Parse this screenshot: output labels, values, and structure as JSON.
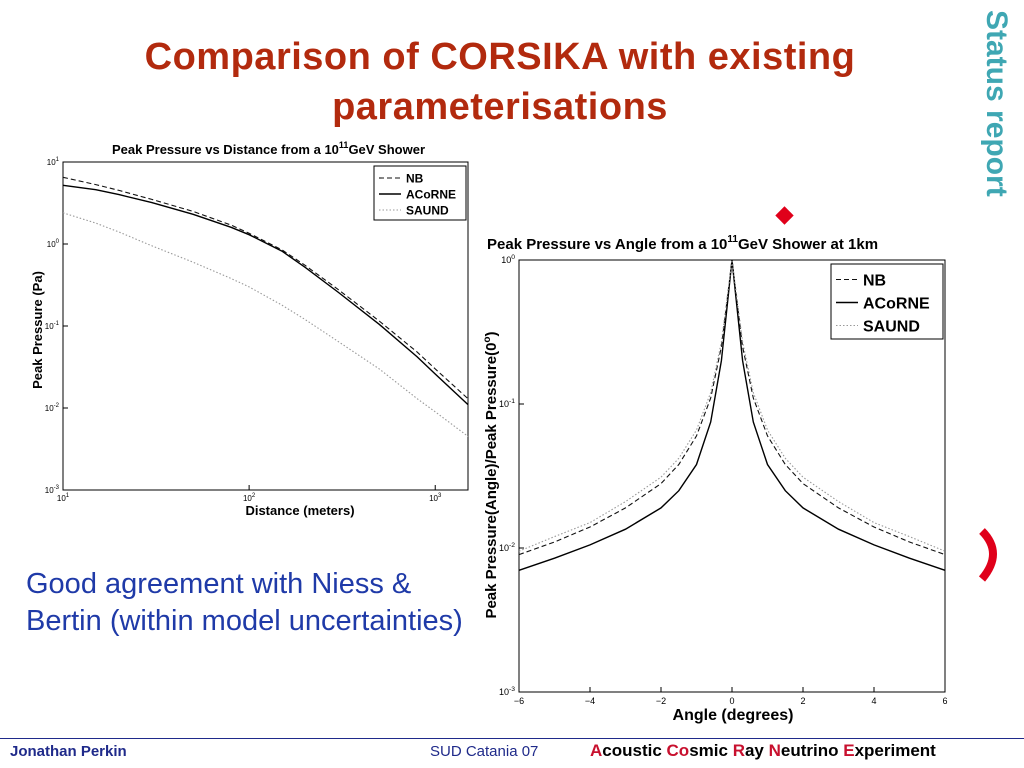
{
  "slide": {
    "title_line1": "Comparison of CORSIKA with existing",
    "title_line2": "parameterisations",
    "side_label": "Status report",
    "body_text": "Good agreement with Niess & Bertin (within model uncertainties)",
    "footer": {
      "author": "Jonathan Perkin",
      "event": "SUD Catania 07",
      "project_parts": [
        {
          "text": "A",
          "accent": true
        },
        {
          "text": "coustic ",
          "accent": false
        },
        {
          "text": "Co",
          "accent": true
        },
        {
          "text": "smic ",
          "accent": false
        },
        {
          "text": "R",
          "accent": true
        },
        {
          "text": "ay ",
          "accent": false
        },
        {
          "text": "N",
          "accent": true
        },
        {
          "text": "eutrino ",
          "accent": false
        },
        {
          "text": "E",
          "accent": true
        },
        {
          "text": "xperiment",
          "accent": false
        }
      ]
    },
    "colors": {
      "title": "#b22a0e",
      "body": "#1f3aa8",
      "side": "#3fa7b3",
      "footer": "#1f2a8a",
      "accent": "#c8102e",
      "decor": "#e0001a"
    }
  },
  "chart_data": [
    {
      "type": "line",
      "title_main": "Peak Pressure vs Distance from a 10",
      "title_sup": "11",
      "title_end": "GeV Shower",
      "xlabel": "Distance (meters)",
      "ylabel": "Peak Pressure (Pa)",
      "xscale": "log",
      "yscale": "log",
      "xlim": [
        10,
        1500
      ],
      "ylim": [
        0.001,
        10
      ],
      "x_ticks": [
        {
          "base": "10",
          "exp": "1",
          "value": 10
        },
        {
          "base": "10",
          "exp": "2",
          "value": 100
        },
        {
          "base": "10",
          "exp": "3",
          "value": 1000
        }
      ],
      "y_ticks": [
        {
          "base": "10",
          "exp": "-3",
          "value": 0.001
        },
        {
          "base": "10",
          "exp": "-2",
          "value": 0.01
        },
        {
          "base": "10",
          "exp": "-1",
          "value": 0.1
        },
        {
          "base": "10",
          "exp": "0",
          "value": 1
        },
        {
          "base": "10",
          "exp": "1",
          "value": 10
        }
      ],
      "legend_position": "top-right",
      "series": [
        {
          "name": "NB",
          "style": "dashed",
          "x": [
            10,
            15,
            20,
            30,
            50,
            80,
            100,
            150,
            200,
            300,
            500,
            800,
            1000,
            1500
          ],
          "y": [
            6.5,
            5.3,
            4.5,
            3.5,
            2.5,
            1.7,
            1.35,
            0.85,
            0.55,
            0.28,
            0.115,
            0.048,
            0.03,
            0.013
          ]
        },
        {
          "name": "ACoRNE",
          "style": "solid",
          "x": [
            10,
            15,
            20,
            30,
            50,
            80,
            100,
            150,
            200,
            300,
            500,
            800,
            1000,
            1500
          ],
          "y": [
            5.2,
            4.6,
            4.0,
            3.2,
            2.3,
            1.6,
            1.3,
            0.82,
            0.52,
            0.26,
            0.105,
            0.042,
            0.026,
            0.011
          ]
        },
        {
          "name": "SAUND",
          "style": "dotted",
          "x": [
            10,
            15,
            20,
            30,
            50,
            80,
            100,
            150,
            200,
            300,
            500,
            800,
            1000,
            1500
          ],
          "y": [
            2.4,
            1.8,
            1.4,
            0.95,
            0.6,
            0.38,
            0.3,
            0.18,
            0.12,
            0.065,
            0.03,
            0.013,
            0.009,
            0.0045
          ]
        }
      ]
    },
    {
      "type": "line",
      "title_main": "Peak Pressure vs Angle from a 10",
      "title_sup": "11",
      "title_end": "GeV Shower at 1km",
      "xlabel": "Angle (degrees)",
      "ylabel": "Peak Pressure(Angle)/Peak Pressure(0",
      "ylabel_sup": "o",
      "ylabel_end": ")",
      "xscale": "linear",
      "yscale": "log",
      "xlim": [
        -6,
        6
      ],
      "ylim": [
        0.001,
        1
      ],
      "x_ticks": [
        {
          "label": "−6",
          "value": -6
        },
        {
          "label": "−4",
          "value": -4
        },
        {
          "label": "−2",
          "value": -2
        },
        {
          "label": "0",
          "value": 0
        },
        {
          "label": "2",
          "value": 2
        },
        {
          "label": "4",
          "value": 4
        },
        {
          "label": "6",
          "value": 6
        }
      ],
      "y_ticks": [
        {
          "base": "10",
          "exp": "-3",
          "value": 0.001
        },
        {
          "base": "10",
          "exp": "-2",
          "value": 0.01
        },
        {
          "base": "10",
          "exp": "-1",
          "value": 0.1
        },
        {
          "base": "10",
          "exp": "0",
          "value": 1
        }
      ],
      "legend_position": "top-right",
      "series": [
        {
          "name": "NB",
          "style": "dashed",
          "x": [
            -6,
            -5,
            -4,
            -3,
            -2,
            -1.5,
            -1,
            -0.6,
            -0.3,
            0,
            0.3,
            0.6,
            1,
            1.5,
            2,
            3,
            4,
            5,
            6
          ],
          "y": [
            0.009,
            0.011,
            0.014,
            0.019,
            0.028,
            0.038,
            0.06,
            0.11,
            0.25,
            1,
            0.25,
            0.11,
            0.06,
            0.038,
            0.028,
            0.019,
            0.014,
            0.011,
            0.009
          ]
        },
        {
          "name": "ACoRNE",
          "style": "solid",
          "x": [
            -6,
            -5,
            -4,
            -3,
            -2,
            -1.5,
            -1,
            -0.6,
            -0.3,
            0,
            0.3,
            0.6,
            1,
            1.5,
            2,
            3,
            4,
            5,
            6
          ],
          "y": [
            0.007,
            0.0085,
            0.0105,
            0.0135,
            0.019,
            0.025,
            0.038,
            0.075,
            0.2,
            1,
            0.2,
            0.075,
            0.038,
            0.025,
            0.019,
            0.0135,
            0.0105,
            0.0085,
            0.007
          ]
        },
        {
          "name": "SAUND",
          "style": "dotted",
          "x": [
            -6,
            -5,
            -4,
            -3,
            -2,
            -1.5,
            -1,
            -0.6,
            -0.3,
            0,
            0.3,
            0.6,
            1,
            1.5,
            2,
            3,
            4,
            5,
            6
          ],
          "y": [
            0.0095,
            0.012,
            0.015,
            0.021,
            0.031,
            0.042,
            0.066,
            0.12,
            0.27,
            1,
            0.27,
            0.12,
            0.066,
            0.042,
            0.031,
            0.021,
            0.015,
            0.012,
            0.0095
          ]
        }
      ]
    }
  ]
}
